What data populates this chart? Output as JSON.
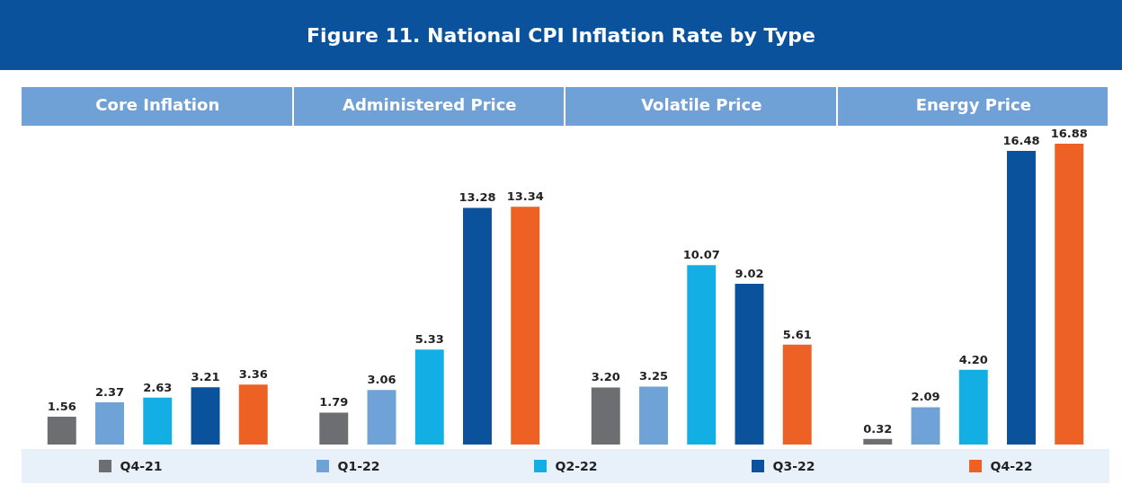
{
  "chart_data": {
    "type": "bar",
    "title": "Figure 11. National CPI Inflation Rate by Type",
    "categories": [
      "Core Inflation",
      "Administered Price",
      "Volatile Price",
      "Energy Price"
    ],
    "legend": "bottom",
    "series": [
      {
        "name": "Q4-21",
        "color": "#6d6e71",
        "values": [
          1.56,
          1.79,
          3.2,
          0.32
        ],
        "value_labels": [
          "1.56",
          "1.79",
          "3.20",
          "0.32"
        ]
      },
      {
        "name": "Q1-22",
        "color": "#6fa3d8",
        "values": [
          2.37,
          3.06,
          3.25,
          2.09
        ],
        "value_labels": [
          "2.37",
          "3.06",
          "3.25",
          "2.09"
        ]
      },
      {
        "name": "Q2-22",
        "color": "#13aee4",
        "values": [
          2.63,
          5.33,
          10.07,
          4.2
        ],
        "value_labels": [
          "2.63",
          "5.33",
          "10.07",
          "4.20"
        ]
      },
      {
        "name": "Q3-22",
        "color": "#0a529b",
        "values": [
          3.21,
          13.28,
          9.02,
          16.48
        ],
        "value_labels": [
          "3.21",
          "13.28",
          "9.02",
          "16.48"
        ]
      },
      {
        "name": "Q4-22",
        "color": "#ed6125",
        "values": [
          3.36,
          13.34,
          5.61,
          16.88
        ],
        "value_labels": [
          "3.36",
          "13.34",
          "5.61",
          "16.88"
        ]
      }
    ]
  }
}
